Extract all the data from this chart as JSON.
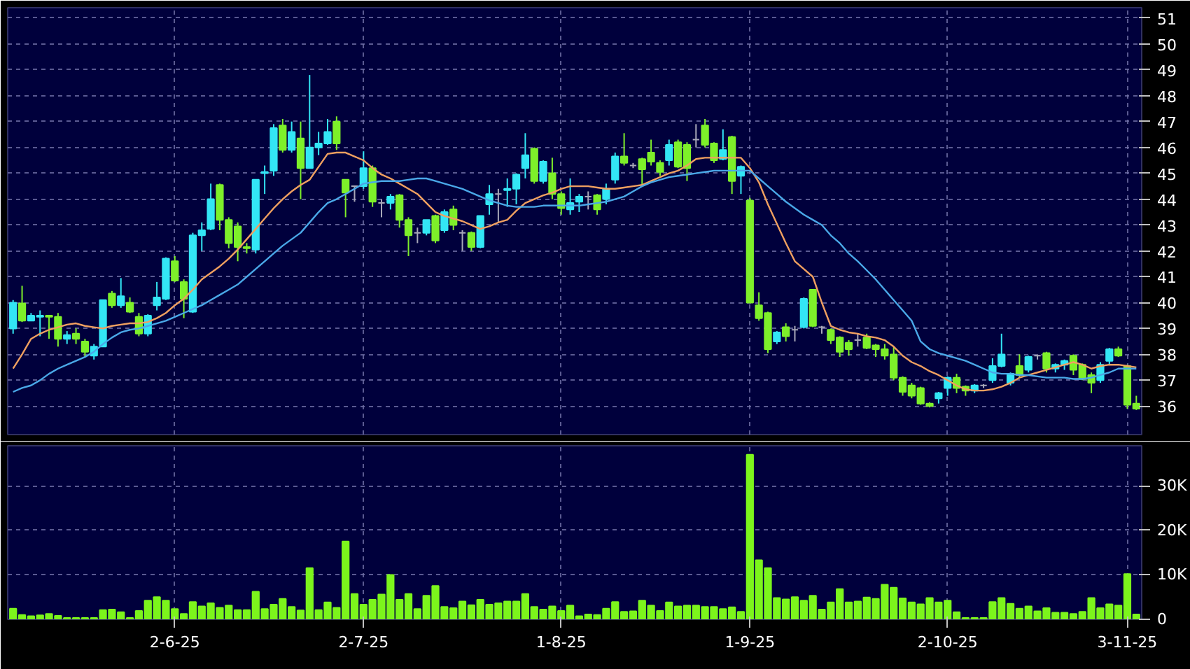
{
  "chart_data": [
    {
      "type": "candlestick",
      "tick_labels": "y",
      "grid": true,
      "ylim": [
        34.9,
        51.4
      ],
      "yticks": [
        36,
        37,
        38,
        39,
        40,
        41,
        42,
        43,
        44,
        45,
        46,
        47,
        48,
        49,
        50,
        51
      ],
      "categories": [
        null,
        null,
        null,
        null,
        null,
        null,
        null,
        null,
        null,
        null,
        null,
        null,
        null,
        null,
        null,
        null,
        null,
        null,
        null,
        null,
        null,
        null,
        null,
        null,
        null,
        null,
        null,
        null,
        null,
        null,
        null,
        null,
        null,
        null,
        null,
        null,
        null,
        null,
        null,
        null,
        null,
        null,
        null,
        null,
        null,
        null,
        null,
        null,
        null,
        null,
        null,
        null,
        null,
        null,
        null,
        null,
        null,
        null,
        null,
        null,
        null,
        null,
        null,
        null,
        null,
        null,
        null,
        null,
        null,
        null,
        null,
        null,
        null,
        null,
        null,
        null,
        null,
        null,
        null,
        null,
        null,
        null,
        null,
        null,
        null,
        null,
        null,
        null,
        null,
        null,
        null,
        null,
        null,
        null,
        null,
        null,
        null,
        null,
        null,
        null,
        null,
        null,
        null,
        null,
        null,
        null,
        null,
        null,
        null,
        null,
        null,
        null,
        null,
        null,
        null,
        null,
        null,
        null,
        null,
        null,
        null,
        null,
        null,
        null,
        null,
        null
      ],
      "ohlc": [
        [
          39.0,
          40.1,
          38.8,
          40.0
        ],
        [
          39.97,
          40.65,
          39.25,
          39.3
        ],
        [
          39.3,
          39.6,
          39.3,
          39.5
        ],
        [
          39.45,
          39.7,
          38.7,
          39.5
        ],
        [
          39.5,
          39.5,
          38.6,
          39.45
        ],
        [
          39.45,
          39.6,
          38.3,
          38.6
        ],
        [
          38.6,
          38.9,
          38.4,
          38.75
        ],
        [
          38.8,
          39.0,
          38.4,
          38.6
        ],
        [
          38.5,
          38.6,
          37.9,
          38.1
        ],
        [
          37.95,
          38.4,
          37.8,
          38.3
        ],
        [
          38.3,
          40.1,
          38.3,
          40.1
        ],
        [
          40.35,
          40.45,
          39.8,
          39.9
        ],
        [
          39.9,
          40.95,
          39.8,
          40.25
        ],
        [
          40.0,
          40.2,
          39.6,
          39.65
        ],
        [
          39.45,
          39.6,
          38.7,
          38.8
        ],
        [
          38.8,
          39.55,
          38.7,
          39.5
        ],
        [
          39.9,
          40.8,
          39.7,
          40.2
        ],
        [
          40.15,
          41.75,
          40.1,
          41.7
        ],
        [
          41.6,
          41.8,
          40.8,
          40.85
        ],
        [
          40.8,
          40.9,
          39.4,
          40.15
        ],
        [
          39.65,
          42.7,
          39.6,
          42.6
        ],
        [
          42.6,
          43.1,
          42.0,
          42.8
        ],
        [
          42.85,
          44.6,
          42.8,
          44.0
        ],
        [
          44.55,
          44.6,
          42.8,
          43.2
        ],
        [
          43.2,
          43.3,
          42.1,
          42.3
        ],
        [
          42.95,
          43.1,
          41.6,
          42.15
        ],
        [
          42.15,
          42.3,
          41.9,
          42.1
        ],
        [
          42.05,
          44.75,
          41.9,
          44.75
        ],
        [
          45.0,
          45.3,
          44.2,
          45.05
        ],
        [
          45.1,
          46.9,
          44.9,
          46.75
        ],
        [
          46.85,
          47.1,
          45.8,
          45.9
        ],
        [
          45.9,
          47.0,
          45.8,
          46.6
        ],
        [
          46.35,
          47.0,
          44.0,
          45.2
        ],
        [
          45.2,
          48.8,
          45.2,
          46.0
        ],
        [
          46.0,
          46.6,
          45.7,
          46.15
        ],
        [
          46.15,
          47.1,
          46.1,
          46.6
        ],
        [
          47.0,
          47.2,
          45.9,
          46.15
        ],
        [
          44.75,
          44.75,
          43.3,
          44.25
        ],
        [
          44.5,
          44.5,
          43.9,
          44.5
        ],
        [
          44.5,
          45.85,
          44.4,
          45.2
        ],
        [
          45.2,
          45.3,
          43.7,
          43.9
        ],
        [
          43.85,
          44.0,
          43.3,
          43.85
        ],
        [
          43.85,
          44.2,
          43.6,
          44.1
        ],
        [
          44.15,
          44.2,
          42.9,
          43.2
        ],
        [
          43.2,
          43.3,
          41.8,
          42.6
        ],
        [
          42.7,
          42.9,
          42.3,
          42.7
        ],
        [
          42.7,
          43.2,
          42.6,
          43.2
        ],
        [
          43.35,
          43.4,
          42.3,
          42.4
        ],
        [
          42.8,
          43.6,
          42.7,
          43.5
        ],
        [
          43.6,
          43.75,
          42.8,
          43.0
        ],
        [
          42.7,
          42.8,
          42.0,
          42.7
        ],
        [
          42.7,
          42.75,
          42.0,
          42.15
        ],
        [
          42.15,
          43.35,
          42.1,
          43.35
        ],
        [
          43.8,
          44.55,
          43.4,
          44.2
        ],
        [
          44.2,
          44.4,
          43.1,
          44.2
        ],
        [
          44.35,
          44.8,
          43.7,
          44.4
        ],
        [
          44.4,
          45.0,
          43.8,
          44.95
        ],
        [
          45.2,
          46.55,
          44.8,
          45.7
        ],
        [
          45.95,
          46.0,
          44.6,
          44.7
        ],
        [
          44.7,
          45.5,
          44.6,
          45.45
        ],
        [
          45.0,
          45.6,
          44.0,
          44.2
        ],
        [
          44.2,
          44.3,
          43.4,
          43.65
        ],
        [
          43.6,
          44.8,
          43.4,
          43.85
        ],
        [
          43.9,
          44.2,
          43.5,
          44.1
        ],
        [
          44.1,
          44.3,
          43.6,
          44.1
        ],
        [
          44.15,
          44.2,
          43.4,
          43.6
        ],
        [
          44.0,
          44.6,
          43.8,
          44.4
        ],
        [
          44.75,
          45.8,
          44.6,
          45.65
        ],
        [
          45.65,
          46.55,
          45.3,
          45.4
        ],
        [
          45.3,
          45.4,
          45.2,
          45.3
        ],
        [
          45.55,
          45.6,
          44.5,
          45.15
        ],
        [
          45.8,
          46.3,
          45.3,
          45.45
        ],
        [
          45.4,
          45.5,
          44.9,
          45.05
        ],
        [
          45.5,
          46.3,
          45.3,
          46.1
        ],
        [
          46.2,
          46.3,
          45.2,
          45.25
        ],
        [
          46.1,
          46.2,
          44.7,
          45.2
        ],
        [
          46.3,
          46.9,
          46.0,
          46.3
        ],
        [
          46.85,
          47.1,
          46.0,
          46.1
        ],
        [
          46.15,
          46.2,
          45.4,
          45.5
        ],
        [
          45.55,
          46.7,
          45.5,
          45.9
        ],
        [
          46.4,
          46.45,
          44.2,
          44.7
        ],
        [
          44.9,
          45.3,
          44.2,
          45.25
        ],
        [
          43.95,
          44.05,
          40.0,
          40.0
        ],
        [
          39.9,
          40.4,
          39.3,
          39.4
        ],
        [
          39.6,
          39.65,
          38.05,
          38.2
        ],
        [
          38.5,
          38.9,
          38.4,
          38.85
        ],
        [
          39.05,
          39.2,
          38.5,
          38.7
        ],
        [
          38.95,
          39.1,
          38.5,
          38.95
        ],
        [
          39.05,
          40.2,
          39.0,
          40.15
        ],
        [
          40.5,
          40.5,
          39.05,
          39.1
        ],
        [
          39.05,
          39.1,
          38.8,
          39.05
        ],
        [
          38.95,
          39.0,
          38.4,
          38.55
        ],
        [
          38.65,
          38.7,
          37.9,
          38.1
        ],
        [
          38.45,
          38.55,
          37.95,
          38.2
        ],
        [
          38.55,
          38.8,
          38.3,
          38.55
        ],
        [
          38.65,
          38.8,
          38.2,
          38.25
        ],
        [
          38.35,
          38.4,
          37.9,
          38.2
        ],
        [
          38.2,
          38.4,
          37.8,
          37.95
        ],
        [
          38.0,
          38.3,
          37.0,
          37.1
        ],
        [
          37.1,
          37.15,
          36.4,
          36.55
        ],
        [
          36.8,
          36.9,
          36.3,
          36.4
        ],
        [
          36.7,
          36.75,
          36.05,
          36.1
        ],
        [
          36.1,
          36.15,
          35.95,
          36.0
        ],
        [
          36.3,
          36.55,
          36.1,
          36.5
        ],
        [
          36.7,
          37.15,
          36.4,
          37.1
        ],
        [
          37.1,
          37.25,
          36.5,
          36.7
        ],
        [
          36.75,
          36.8,
          36.4,
          36.6
        ],
        [
          36.6,
          36.85,
          36.5,
          36.8
        ],
        [
          36.8,
          36.85,
          36.7,
          36.8
        ],
        [
          37.0,
          37.85,
          36.9,
          37.55
        ],
        [
          37.55,
          38.8,
          37.5,
          38.0
        ],
        [
          36.9,
          37.3,
          36.8,
          37.25
        ],
        [
          37.55,
          38.0,
          37.1,
          37.2
        ],
        [
          37.4,
          37.95,
          37.3,
          37.9
        ],
        [
          37.95,
          38.0,
          37.8,
          37.95
        ],
        [
          38.05,
          38.1,
          37.3,
          37.45
        ],
        [
          37.45,
          37.65,
          37.3,
          37.6
        ],
        [
          37.6,
          37.8,
          37.4,
          37.75
        ],
        [
          37.95,
          38.0,
          37.2,
          37.4
        ],
        [
          37.6,
          37.65,
          37.0,
          37.05
        ],
        [
          37.2,
          37.3,
          36.5,
          36.9
        ],
        [
          37.0,
          37.7,
          36.9,
          37.6
        ],
        [
          37.75,
          38.25,
          37.6,
          38.2
        ],
        [
          38.2,
          38.3,
          37.9,
          37.95
        ],
        [
          37.55,
          37.6,
          35.9,
          36.05
        ],
        [
          36.1,
          36.4,
          35.85,
          35.9
        ]
      ],
      "colors": [
        "#33e6f5",
        "#7ef02a",
        "#33e6f5",
        "#33e6f5",
        "#7ef02a",
        "#7ef02a",
        "#33e6f5",
        "#7ef02a",
        "#7ef02a",
        "#33e6f5",
        "#33e6f5",
        "#7ef02a",
        "#33e6f5",
        "#7ef02a",
        "#7ef02a",
        "#33e6f5",
        "#33e6f5",
        "#33e6f5",
        "#7ef02a",
        "#7ef02a",
        "#33e6f5",
        "#33e6f5",
        "#33e6f5",
        "#7ef02a",
        "#7ef02a",
        "#7ef02a",
        "#7ef02a",
        "#33e6f5",
        "#33e6f5",
        "#33e6f5",
        "#7ef02a",
        "#33e6f5",
        "#7ef02a",
        "#33e6f5",
        "#33e6f5",
        "#33e6f5",
        "#7ef02a",
        "#7ef02a",
        "#a8a8b8",
        "#33e6f5",
        "#7ef02a",
        "#a8a8b8",
        "#33e6f5",
        "#7ef02a",
        "#7ef02a",
        "#a8a8b8",
        "#33e6f5",
        "#7ef02a",
        "#33e6f5",
        "#7ef02a",
        "#a8a8b8",
        "#7ef02a",
        "#33e6f5",
        "#33e6f5",
        "#a8a8b8",
        "#33e6f5",
        "#33e6f5",
        "#33e6f5",
        "#7ef02a",
        "#33e6f5",
        "#7ef02a",
        "#7ef02a",
        "#33e6f5",
        "#33e6f5",
        "#a8a8b8",
        "#7ef02a",
        "#33e6f5",
        "#33e6f5",
        "#7ef02a",
        "#a8a8b8",
        "#7ef02a",
        "#7ef02a",
        "#7ef02a",
        "#33e6f5",
        "#7ef02a",
        "#7ef02a",
        "#a8a8b8",
        "#7ef02a",
        "#7ef02a",
        "#33e6f5",
        "#7ef02a",
        "#33e6f5",
        "#7ef02a",
        "#7ef02a",
        "#7ef02a",
        "#33e6f5",
        "#7ef02a",
        "#a8a8b8",
        "#33e6f5",
        "#7ef02a",
        "#a8a8b8",
        "#7ef02a",
        "#7ef02a",
        "#7ef02a",
        "#a8a8b8",
        "#7ef02a",
        "#7ef02a",
        "#7ef02a",
        "#7ef02a",
        "#7ef02a",
        "#7ef02a",
        "#7ef02a",
        "#7ef02a",
        "#33e6f5",
        "#33e6f5",
        "#7ef02a",
        "#7ef02a",
        "#33e6f5",
        "#a8a8b8",
        "#33e6f5",
        "#33e6f5",
        "#33e6f5",
        "#7ef02a",
        "#33e6f5",
        "#a8a8b8",
        "#7ef02a",
        "#33e6f5",
        "#33e6f5",
        "#7ef02a",
        "#7ef02a",
        "#7ef02a",
        "#33e6f5",
        "#33e6f5",
        "#7ef02a",
        "#7ef02a",
        "#7ef02a"
      ],
      "series": [
        {
          "type": "line",
          "color": "#f0a060",
          "values": [
            37.45,
            38.0,
            38.6,
            38.8,
            38.95,
            39.05,
            39.15,
            39.2,
            39.1,
            39.05,
            39.0,
            39.1,
            39.15,
            39.2,
            39.2,
            39.25,
            39.4,
            39.6,
            39.9,
            40.15,
            40.5,
            40.9,
            41.15,
            41.4,
            41.7,
            42.05,
            42.45,
            42.85,
            43.25,
            43.65,
            44.0,
            44.3,
            44.55,
            44.75,
            45.25,
            45.75,
            45.8,
            45.8,
            45.65,
            45.5,
            45.2,
            44.95,
            44.8,
            44.6,
            44.4,
            44.2,
            43.85,
            43.5,
            43.35,
            43.25,
            43.15,
            43.0,
            42.85,
            42.95,
            43.1,
            43.2,
            43.55,
            43.85,
            44.0,
            44.15,
            44.25,
            44.4,
            44.5,
            44.5,
            44.5,
            44.45,
            44.4,
            44.4,
            44.45,
            44.5,
            44.55,
            44.7,
            44.85,
            45.0,
            45.1,
            45.3,
            45.55,
            45.6,
            45.6,
            45.6,
            45.6,
            45.6,
            45.2,
            44.65,
            43.8,
            43.05,
            42.3,
            41.6,
            41.3,
            41.0,
            40.0,
            39.1,
            38.95,
            38.85,
            38.8,
            38.7,
            38.65,
            38.55,
            38.3,
            37.95,
            37.7,
            37.55,
            37.35,
            37.2,
            37.0,
            36.8,
            36.65,
            36.6,
            36.6,
            36.65,
            36.75,
            36.9,
            37.1,
            37.2,
            37.3,
            37.4,
            37.5,
            37.6,
            37.7,
            37.6,
            37.45,
            37.55,
            37.6,
            37.6,
            37.55,
            37.5
          ]
        },
        {
          "type": "line",
          "color": "#4aa8e8",
          "values": [
            36.55,
            36.7,
            36.8,
            37.0,
            37.25,
            37.45,
            37.6,
            37.75,
            37.9,
            38.1,
            38.4,
            38.65,
            38.85,
            38.95,
            39.0,
            39.1,
            39.2,
            39.3,
            39.45,
            39.6,
            39.75,
            39.9,
            40.1,
            40.3,
            40.5,
            40.7,
            41.0,
            41.3,
            41.6,
            41.9,
            42.2,
            42.45,
            42.7,
            43.1,
            43.5,
            43.85,
            44.0,
            44.2,
            44.4,
            44.6,
            44.65,
            44.7,
            44.7,
            44.7,
            44.75,
            44.8,
            44.8,
            44.7,
            44.6,
            44.5,
            44.4,
            44.25,
            44.1,
            43.95,
            43.85,
            43.75,
            43.7,
            43.7,
            43.7,
            43.75,
            43.75,
            43.75,
            43.75,
            43.75,
            43.8,
            43.85,
            43.9,
            44.0,
            44.1,
            44.3,
            44.5,
            44.65,
            44.75,
            44.85,
            44.9,
            44.95,
            45.0,
            45.05,
            45.1,
            45.1,
            45.1,
            45.1,
            45.1,
            44.8,
            44.5,
            44.2,
            43.9,
            43.65,
            43.4,
            43.2,
            43.0,
            42.6,
            42.3,
            41.9,
            41.6,
            41.25,
            40.9,
            40.5,
            40.1,
            39.7,
            39.3,
            38.5,
            38.2,
            38.05,
            37.95,
            37.85,
            37.75,
            37.6,
            37.45,
            37.3,
            37.25,
            37.25,
            37.2,
            37.2,
            37.15,
            37.1,
            37.1,
            37.1,
            37.05,
            37.05,
            37.1,
            37.2,
            37.3,
            37.45,
            37.45,
            37.45
          ]
        }
      ]
    },
    {
      "type": "bar",
      "grid": true,
      "color": "#7cf51c",
      "ylim": [
        0,
        39000
      ],
      "yticks": [
        0,
        {
          "value": 10000,
          "label": "10K"
        },
        {
          "value": 20000,
          "label": "20K"
        },
        {
          "value": 30000,
          "label": "30K"
        }
      ],
      "categories": [
        null,
        null,
        null,
        null,
        null,
        null,
        null,
        null,
        null,
        null,
        null,
        null,
        null,
        null,
        null,
        null,
        null,
        null,
        "2-6-25",
        null,
        null,
        null,
        null,
        null,
        null,
        null,
        null,
        null,
        null,
        null,
        null,
        null,
        null,
        null,
        null,
        null,
        null,
        null,
        null,
        "2-7-25",
        null,
        null,
        null,
        null,
        null,
        null,
        null,
        null,
        null,
        null,
        null,
        null,
        null,
        null,
        null,
        null,
        null,
        null,
        null,
        null,
        null,
        "1-8-25",
        null,
        null,
        null,
        null,
        null,
        null,
        null,
        null,
        null,
        null,
        null,
        null,
        null,
        null,
        null,
        null,
        null,
        null,
        null,
        null,
        "1-9-25",
        null,
        null,
        null,
        null,
        null,
        null,
        null,
        null,
        null,
        null,
        null,
        null,
        null,
        null,
        null,
        null,
        null,
        null,
        null,
        null,
        null,
        "2-10-25",
        null,
        null,
        null,
        null,
        null,
        null,
        null,
        null,
        null,
        null,
        null,
        null,
        null,
        null,
        null,
        null,
        null,
        null,
        null,
        "3-11-25",
        null
      ],
      "values": [
        2400,
        1000,
        700,
        900,
        1200,
        800,
        300,
        300,
        300,
        300,
        2100,
        2200,
        1600,
        300,
        1900,
        4200,
        5000,
        4200,
        2300,
        1200,
        3900,
        2900,
        3600,
        2600,
        3100,
        2100,
        2100,
        6200,
        2300,
        3300,
        4600,
        2800,
        2000,
        11500,
        2100,
        3800,
        2600,
        17500,
        5700,
        3300,
        4400,
        5600,
        10000,
        4400,
        5700,
        2300,
        5300,
        7500,
        2800,
        2500,
        4000,
        3200,
        4400,
        3300,
        3600,
        4000,
        4000,
        5700,
        2800,
        2200,
        2900,
        1900,
        3100,
        700,
        1100,
        1000,
        2400,
        3900,
        1700,
        1800,
        4200,
        3100,
        1900,
        3800,
        2900,
        3100,
        3100,
        2800,
        2800,
        2300,
        2700,
        1700,
        37000,
        13300,
        11500,
        4800,
        4500,
        5000,
        4200,
        5300,
        2200,
        3800,
        6800,
        3800,
        4000,
        4900,
        4600,
        7800,
        7100,
        4700,
        3800,
        3400,
        4800,
        3800,
        4200,
        1600,
        300,
        300,
        300,
        3900,
        4800,
        3500,
        2400,
        2900,
        1800,
        2500,
        1500,
        1500,
        1200,
        1700,
        4800,
        2500,
        3400,
        3100,
        10200,
        1100
      ]
    }
  ]
}
